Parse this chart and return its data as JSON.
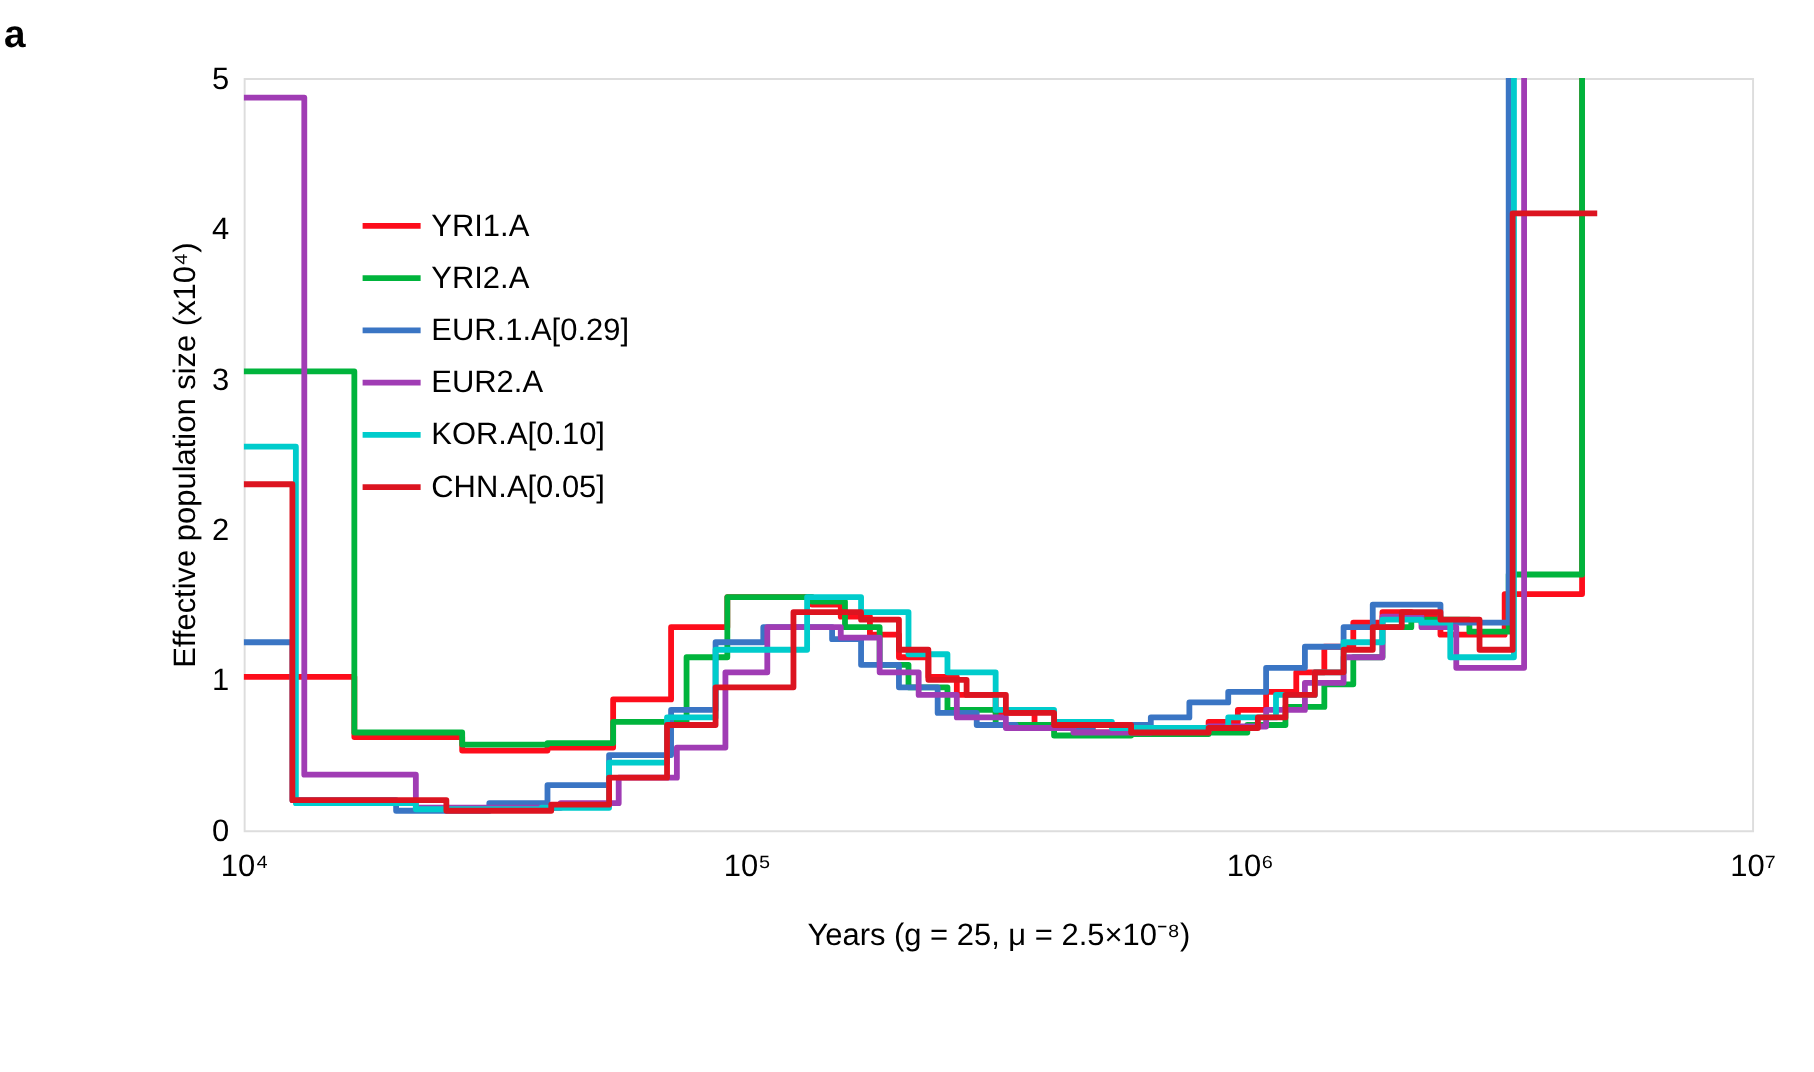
{
  "chart_data": {
    "type": "step",
    "title": "a",
    "xlabel": "Years (g = 25, μ = 2.5×10⁻⁸)",
    "ylabel": "Effective population size (x10⁴)",
    "log": "x",
    "xlim": [
      10000,
      10000000
    ],
    "xticks": [
      {
        "value": 10000,
        "label": "10⁴"
      },
      {
        "value": 100000,
        "label": "10⁵"
      },
      {
        "value": 1000000,
        "label": "10⁶"
      },
      {
        "value": 10000000,
        "label": "10⁷"
      }
    ],
    "ylim": [
      0,
      5
    ],
    "yticks": [
      0,
      1,
      2,
      3,
      4,
      5
    ],
    "grid": false,
    "legend": "top left",
    "line_style": "solid",
    "series": [
      {
        "name": "YRI1.A",
        "color": "#fd0d1b",
        "x": [
          10000,
          16600,
          27200,
          40200,
          54300,
          70800,
          91600,
          135000,
          154000,
          176000,
          201000,
          230000,
          262000,
          313000,
          374000,
          488000,
          695000,
          830000,
          949000,
          1080000,
          1240000,
          1410000,
          1610000,
          1840000,
          2100000,
          2400000,
          3220000,
          4590000
        ],
        "values": [
          1.02,
          0.62,
          0.53,
          0.55,
          0.87,
          1.35,
          1.55,
          1.5,
          1.42,
          1.3,
          1.15,
          1.02,
          0.9,
          0.78,
          0.7,
          0.65,
          0.67,
          0.72,
          0.8,
          0.92,
          1.05,
          1.22,
          1.38,
          1.45,
          1.42,
          1.3,
          1.57,
          5
        ]
      },
      {
        "name": "YRI2.A",
        "color": "#00b43c",
        "x": [
          10000,
          16600,
          27200,
          40200,
          54300,
          76000,
          91600,
          135000,
          157000,
          184000,
          210000,
          251000,
          313000,
          409000,
          582000,
          830000,
          991000,
          1180000,
          1410000,
          1610000,
          1840000,
          2100000,
          2740000,
          3280000,
          4590000
        ],
        "values": [
          3.05,
          0.65,
          0.57,
          0.58,
          0.72,
          1.15,
          1.55,
          1.52,
          1.35,
          1.1,
          0.95,
          0.8,
          0.7,
          0.63,
          0.64,
          0.65,
          0.7,
          0.82,
          0.97,
          1.15,
          1.35,
          1.4,
          1.32,
          1.7,
          5
        ]
      },
      {
        "name": "EUR.1.A[0.29]",
        "color": "#3a75c4",
        "x": [
          10000,
          12500,
          20100,
          30800,
          40200,
          53300,
          70800,
          86800,
          108000,
          148000,
          169000,
          201000,
          240000,
          287000,
          343000,
          488000,
          637000,
          760000,
          908000,
          1080000,
          1290000,
          1540000,
          1760000,
          2400000,
          3280000
        ],
        "values": [
          1.25,
          0.2,
          0.13,
          0.18,
          0.3,
          0.5,
          0.8,
          1.25,
          1.35,
          1.27,
          1.1,
          0.95,
          0.78,
          0.7,
          0.68,
          0.7,
          0.75,
          0.85,
          0.92,
          1.08,
          1.22,
          1.35,
          1.5,
          1.38,
          5
        ]
      },
      {
        "name": "EUR2.A",
        "color": "#a03cb4",
        "x": [
          10000,
          13200,
          22000,
          42700,
          55700,
          72700,
          90800,
          110000,
          154000,
          184000,
          220000,
          262000,
          328000,
          447000,
          637000,
          830000,
          1080000,
          1290000,
          1540000,
          1840000,
          2200000,
          2580000,
          3520000
        ],
        "values": [
          4.87,
          0.37,
          0.15,
          0.18,
          0.35,
          0.55,
          1.05,
          1.35,
          1.28,
          1.05,
          0.9,
          0.75,
          0.68,
          0.65,
          0.66,
          0.69,
          0.8,
          0.98,
          1.15,
          1.42,
          1.35,
          1.08,
          5
        ]
      },
      {
        "name": "KOR.A[0.10]",
        "color": "#00cccc",
        "x": [
          10000,
          12700,
          22000,
          39100,
          53300,
          69500,
          86800,
          132000,
          169000,
          210000,
          251000,
          313000,
          409000,
          533000,
          695000,
          908000,
          1130000,
          1350000,
          1540000,
          1840000,
          2200000,
          2510000,
          3360000
        ],
        "values": [
          2.55,
          0.18,
          0.14,
          0.15,
          0.45,
          0.75,
          1.2,
          1.55,
          1.45,
          1.17,
          1.05,
          0.8,
          0.72,
          0.68,
          0.68,
          0.75,
          0.9,
          1.05,
          1.25,
          1.4,
          1.38,
          1.15,
          5
        ]
      },
      {
        "name": "CHN.A[0.05]",
        "color": "#dc1420",
        "x": [
          10000,
          12500,
          25300,
          40900,
          53300,
          69500,
          86800,
          124000,
          169000,
          201000,
          230000,
          274000,
          328000,
          409000,
          582000,
          830000,
          1040000,
          1180000,
          1350000,
          1540000,
          1760000,
          2010000,
          2400000,
          2870000,
          3340000,
          4920000
        ],
        "values": [
          2.3,
          0.2,
          0.13,
          0.17,
          0.35,
          0.7,
          0.95,
          1.45,
          1.4,
          1.2,
          1.0,
          0.9,
          0.78,
          0.7,
          0.65,
          0.68,
          0.75,
          0.9,
          1.05,
          1.2,
          1.35,
          1.45,
          1.4,
          1.2,
          4.1,
          4.1
        ]
      }
    ]
  }
}
